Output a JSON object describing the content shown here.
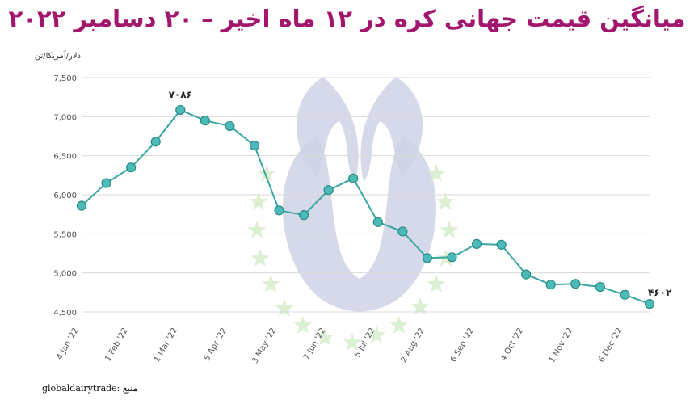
{
  "title": "میانگین قیمت جهانی کره در ۱۲ ماه اخیر – ۲۰ دسامبر ۲۰۲۲",
  "source": "globaldairytrade: منبع",
  "colors": {
    "line": "#3aa6a2",
    "marker_fill": "#4cbab6",
    "marker_stroke": "#2b8a86",
    "title": "#a3166e",
    "grid": "#d9d9d9",
    "watermark": "#cfd2e6",
    "watermark_stars": "#dcefd2"
  },
  "chart_data": {
    "type": "line",
    "title": "میانگین قیمت جهانی کره در ۱۲ ماه اخیر – ۲۰ دسامبر ۲۰۲۲",
    "ylabel": "دلار/آمریکا/تن",
    "xlabel": "",
    "ylim": [
      4500,
      7500
    ],
    "yticks": [
      4500,
      5000,
      5500,
      6000,
      6500,
      7000,
      7500
    ],
    "ytick_labels": [
      "4,500",
      "5,000",
      "5,500",
      "6,000",
      "6,500",
      "7,000",
      "7,500"
    ],
    "xtick_labels": [
      "4 Jan '22",
      "1 Feb '22",
      "1 Mar '22",
      "5 Apr '22",
      "3 May '22",
      "7 Jun '22",
      "5 Jul '22",
      "2 Aug '22",
      "6 Sep '22",
      "4 Oct '22",
      "1 Nov '22",
      "6 Dec '22"
    ],
    "grid": true,
    "series": [
      {
        "values": [
          5860,
          6150,
          6350,
          6680,
          7086,
          6950,
          6880,
          6630,
          5800,
          5740,
          6060,
          6210,
          5650,
          5530,
          5190,
          5200,
          5370,
          5360,
          4980,
          4850,
          4860,
          4820,
          4720,
          4602
        ]
      }
    ],
    "annotations": [
      {
        "index": 4,
        "text": "۷۰۸۶"
      },
      {
        "index": 23,
        "text": "۴۶۰۲"
      }
    ]
  }
}
